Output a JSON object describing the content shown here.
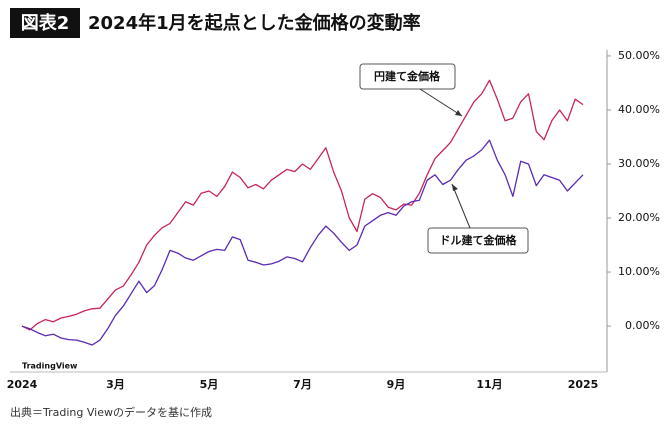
{
  "badge": "図表2",
  "source": "出典＝Trading Viewのデータを基に作成",
  "watermark": "TradingView",
  "chart_data": {
    "type": "line",
    "title": "2024年1月を起点とした金価格の変動率",
    "categories": [
      "2024",
      null,
      null,
      null,
      null,
      null,
      null,
      null,
      null,
      null,
      null,
      null,
      "3月",
      null,
      null,
      null,
      null,
      null,
      null,
      null,
      null,
      null,
      null,
      null,
      "5月",
      null,
      null,
      null,
      null,
      null,
      null,
      null,
      null,
      null,
      null,
      null,
      "7月",
      null,
      null,
      null,
      null,
      null,
      null,
      null,
      null,
      null,
      null,
      null,
      "9月",
      null,
      null,
      null,
      null,
      null,
      null,
      null,
      null,
      null,
      null,
      null,
      "11月",
      null,
      null,
      null,
      null,
      null,
      null,
      null,
      null,
      null,
      null,
      null,
      "2025"
    ],
    "series": [
      {
        "name": "円建て金価格",
        "color": "#c8245a",
        "values": [
          0,
          -0.7,
          0.5,
          1.2,
          0.8,
          1.5,
          1.8,
          2.2,
          2.8,
          3.2,
          3.3,
          5,
          6.7,
          7.4,
          9.5,
          11.8,
          15,
          16.8,
          18.2,
          19,
          21,
          23,
          22.4,
          24.6,
          25,
          24,
          25.8,
          28.5,
          27.5,
          25.6,
          26.2,
          25.4,
          27,
          28,
          29,
          28.6,
          30,
          29,
          31,
          33,
          28.5,
          25,
          20,
          17.5,
          23.5,
          24.5,
          23.8,
          22,
          21.5,
          22.6,
          22.4,
          24.6,
          28,
          31,
          32.5,
          34,
          36.5,
          39,
          41.5,
          43,
          45.5,
          42,
          38,
          38.5,
          41.5,
          43,
          36,
          34.5,
          38,
          40,
          38,
          42,
          41
        ]
      },
      {
        "name": "ドル建て金価格",
        "color": "#5b2bb5",
        "values": [
          0,
          -0.5,
          -1.2,
          -1.8,
          -1.5,
          -2.2,
          -2.5,
          -2.6,
          -3,
          -3.5,
          -2.6,
          -0.5,
          2,
          3.7,
          6,
          8.3,
          6.2,
          7.5,
          10.5,
          14,
          13.5,
          12.6,
          12.2,
          13,
          13.8,
          14.2,
          14,
          16.5,
          16,
          12.2,
          11.8,
          11.3,
          11.5,
          12,
          12.8,
          12.5,
          11.9,
          14.5,
          16.8,
          18.5,
          17.2,
          15.5,
          14,
          15,
          18.5,
          19.5,
          20.5,
          21,
          20.5,
          22.2,
          23,
          23.3,
          27,
          28,
          26.2,
          27,
          29,
          30.7,
          31.5,
          32.6,
          34.4,
          30.7,
          28,
          24,
          30.5,
          30,
          26,
          28,
          27.5,
          27,
          25,
          26.5,
          28
        ]
      }
    ],
    "ylim": [
      -8.5,
      51.1
    ],
    "yticks": [
      {
        "value": 0,
        "label": "0.00%"
      },
      {
        "value": 10,
        "label": "10.00%"
      },
      {
        "value": 20,
        "label": "20.00%"
      },
      {
        "value": 30,
        "label": "30.00%"
      },
      {
        "value": 40,
        "label": "40.00%"
      },
      {
        "value": 50,
        "label": "50.00%"
      }
    ],
    "grid": false
  }
}
